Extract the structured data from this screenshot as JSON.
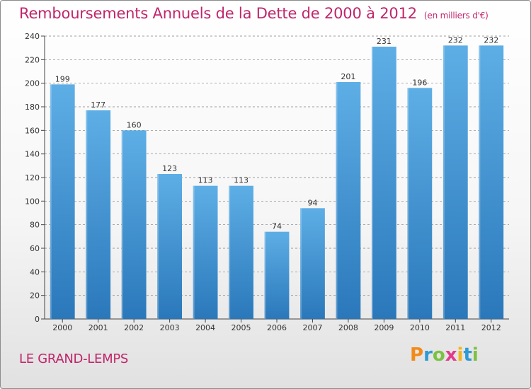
{
  "header": {
    "title": "Remboursements Annuels de la Dette de 2000 à 2012",
    "unit": "(en milliers d'€)"
  },
  "footer": {
    "city": "LE GRAND-LEMPS",
    "logo": "Proxiti"
  },
  "colors": {
    "title": "#c0256b",
    "bar_light": "#5eaee6",
    "bar_dark": "#2a78ba",
    "grid": "#7f7f7f"
  },
  "chart_data": {
    "type": "bar",
    "title": "Remboursements Annuels de la Dette de 2000 à 2012",
    "xlabel": "",
    "ylabel": "",
    "categories": [
      "2000",
      "2001",
      "2002",
      "2003",
      "2004",
      "2005",
      "2006",
      "2007",
      "2008",
      "2009",
      "2010",
      "2011",
      "2012"
    ],
    "values": [
      199,
      177,
      160,
      123,
      113,
      113,
      74,
      94,
      201,
      231,
      196,
      232,
      232
    ],
    "ylim": [
      0,
      240
    ],
    "yticks": [
      0,
      20,
      40,
      60,
      80,
      100,
      120,
      140,
      160,
      180,
      200,
      220,
      240
    ],
    "grid": true,
    "grid_style": "dashed-horizontal"
  }
}
